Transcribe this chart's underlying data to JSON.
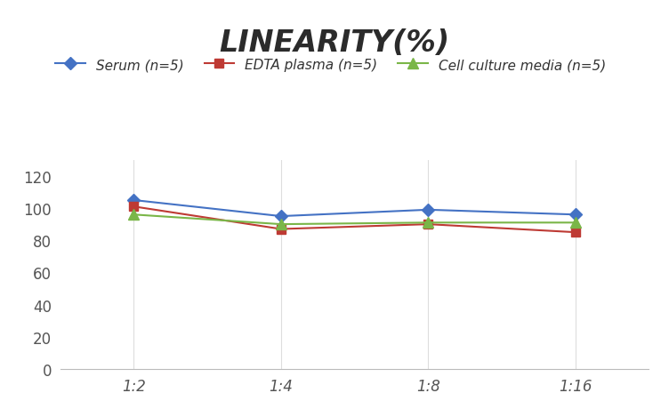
{
  "title": "LINEARITY(%)",
  "x_labels": [
    "1:2",
    "1:4",
    "1:8",
    "1:16"
  ],
  "x_positions": [
    0,
    1,
    2,
    3
  ],
  "series": [
    {
      "label": "Serum (n=5)",
      "color": "#4472C4",
      "marker": "D",
      "marker_size": 7,
      "values": [
        105,
        95,
        99,
        96
      ]
    },
    {
      "label": "EDTA plasma (n=5)",
      "color": "#BE3A34",
      "marker": "s",
      "marker_size": 7,
      "values": [
        101,
        87,
        90,
        85
      ]
    },
    {
      "label": "Cell culture media (n=5)",
      "color": "#7AB648",
      "marker": "^",
      "marker_size": 8,
      "values": [
        96,
        90,
        91,
        91
      ]
    }
  ],
  "ylim": [
    0,
    130
  ],
  "yticks": [
    0,
    20,
    40,
    60,
    80,
    100,
    120
  ],
  "grid_color": "#DDDDDD",
  "background_color": "#FFFFFF",
  "title_fontsize": 24,
  "legend_fontsize": 11,
  "tick_fontsize": 12
}
